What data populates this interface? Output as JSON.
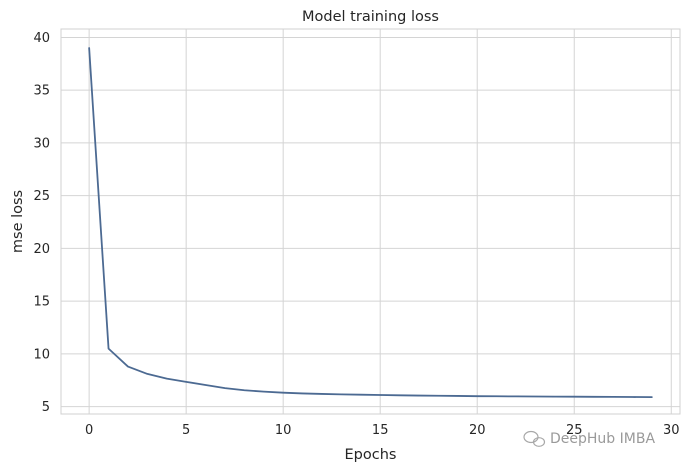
{
  "chart_data": {
    "type": "line",
    "title": "Model training loss",
    "xlabel": "Epochs",
    "ylabel": "mse loss",
    "xlim": [
      -1.45,
      30.45
    ],
    "ylim": [
      4.3,
      40.8
    ],
    "xticks": [
      0,
      5,
      10,
      15,
      20,
      25,
      30
    ],
    "yticks": [
      5,
      10,
      15,
      20,
      25,
      30,
      35,
      40
    ],
    "grid": true,
    "line_color": "#4c6a92",
    "series": [
      {
        "x": [
          0,
          1,
          2,
          3,
          4,
          5,
          6,
          7,
          8,
          9,
          10,
          11,
          12,
          13,
          14,
          15,
          16,
          17,
          18,
          19,
          20,
          21,
          22,
          23,
          24,
          25,
          26,
          27,
          28,
          29
        ],
        "values": [
          39.0,
          10.5,
          8.8,
          8.1,
          7.65,
          7.35,
          7.05,
          6.75,
          6.55,
          6.42,
          6.32,
          6.25,
          6.2,
          6.16,
          6.13,
          6.1,
          6.07,
          6.05,
          6.03,
          6.01,
          5.99,
          5.98,
          5.97,
          5.96,
          5.95,
          5.94,
          5.93,
          5.92,
          5.91,
          5.9
        ]
      }
    ]
  },
  "watermark": {
    "text": "DeepHub IMBA",
    "icon": "wechat-icon"
  }
}
